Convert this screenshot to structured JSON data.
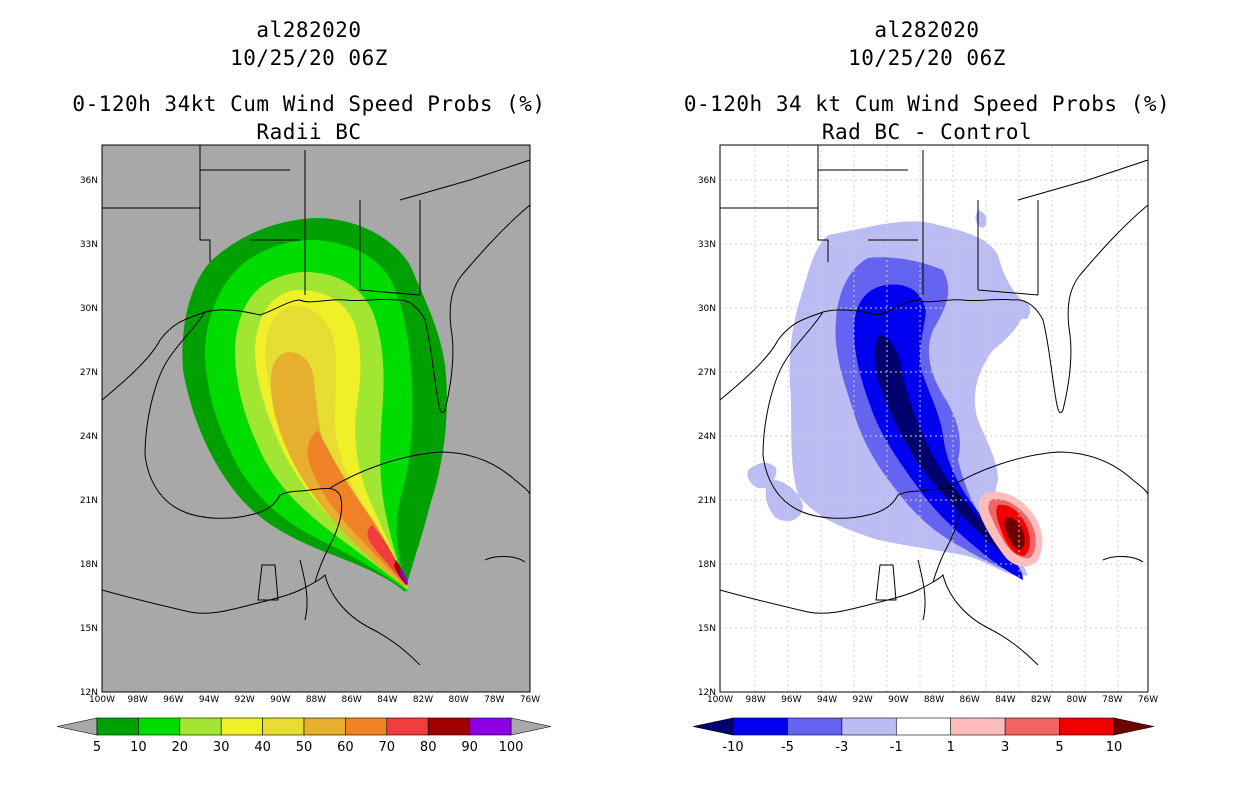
{
  "panels": [
    {
      "storm_id": "al282020",
      "datetime": "10/25/20 06Z",
      "product": "0-120h 34kt Cum Wind Speed Probs (%)",
      "subtitle": "Radii BC",
      "background_color": "#a8a8a8",
      "colorbar": {
        "labels": [
          "5",
          "10",
          "20",
          "30",
          "40",
          "50",
          "60",
          "70",
          "80",
          "90",
          "100"
        ],
        "colors": [
          "#00a000",
          "#00dc00",
          "#a0e632",
          "#f0f028",
          "#e6dc32",
          "#e6af2d",
          "#f08228",
          "#f03c3c",
          "#a00000",
          "#8c00e6"
        ],
        "end_colors": [
          "#a8a8a8",
          "#a8a8a8"
        ]
      }
    },
    {
      "storm_id": "al282020",
      "datetime": "10/25/20 06Z",
      "product": "0-120h 34 kt Cum Wind Speed Probs (%)",
      "subtitle": "Rad BC - Control",
      "background_color": "#ffffff",
      "colorbar": {
        "labels": [
          "-10",
          "-5",
          "-3",
          "-1",
          "1",
          "3",
          "5",
          "10"
        ],
        "colors": [
          "#0000f0",
          "#6464f0",
          "#bcbcf5",
          "#ffffff",
          "#ffbcbc",
          "#f06464",
          "#f00000"
        ],
        "end_colors": [
          "#00006e",
          "#6e0000"
        ]
      }
    }
  ],
  "map": {
    "lat_ticks": [
      "36N",
      "33N",
      "30N",
      "27N",
      "24N",
      "21N",
      "18N",
      "15N",
      "12N"
    ],
    "lon_ticks": [
      "100W",
      "98W",
      "96W",
      "94W",
      "92W",
      "90W",
      "88W",
      "86W",
      "84W",
      "82W",
      "80W",
      "78W",
      "76W"
    ]
  }
}
